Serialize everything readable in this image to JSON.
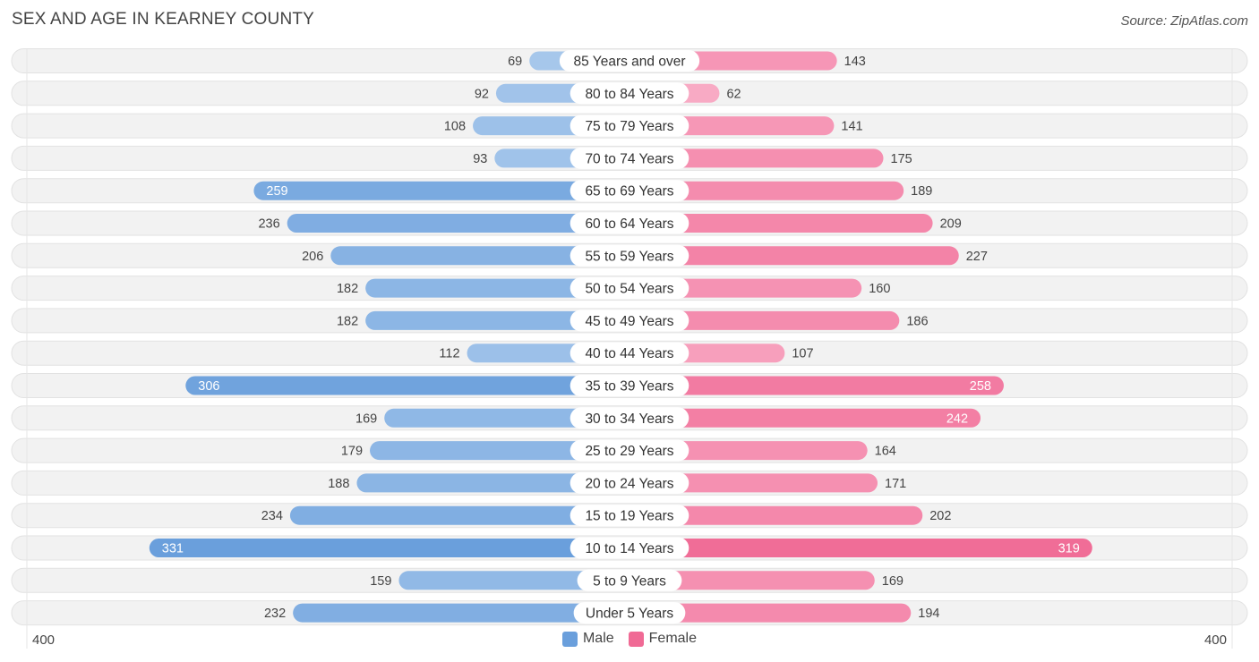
{
  "header": {
    "title": "SEX AND AGE IN KEARNEY COUNTY",
    "source": "Source: ZipAtlas.com"
  },
  "axis": {
    "left_label": "400",
    "right_label": "400"
  },
  "legend": {
    "male_label": "Male",
    "female_label": "Female"
  },
  "colors": {
    "male_light": "#a8c8ec",
    "male_dark": "#6a9fdc",
    "female_light": "#f8aac4",
    "female_dark": "#f06a95",
    "row_bg": "#f2f2f2",
    "row_border": "#e2e2e2"
  },
  "chart_data": {
    "type": "bar",
    "orientation": "horizontal-diverging",
    "max_value": 400,
    "categories": [
      "85 Years and over",
      "80 to 84 Years",
      "75 to 79 Years",
      "70 to 74 Years",
      "65 to 69 Years",
      "60 to 64 Years",
      "55 to 59 Years",
      "50 to 54 Years",
      "45 to 49 Years",
      "40 to 44 Years",
      "35 to 39 Years",
      "30 to 34 Years",
      "25 to 29 Years",
      "20 to 24 Years",
      "15 to 19 Years",
      "10 to 14 Years",
      "5 to 9 Years",
      "Under 5 Years"
    ],
    "series": [
      {
        "name": "Male",
        "values": [
          69,
          92,
          108,
          93,
          259,
          236,
          206,
          182,
          182,
          112,
          306,
          169,
          179,
          188,
          234,
          331,
          159,
          232
        ]
      },
      {
        "name": "Female",
        "values": [
          143,
          62,
          141,
          175,
          189,
          209,
          227,
          160,
          186,
          107,
          258,
          242,
          164,
          171,
          202,
          319,
          169,
          194
        ]
      }
    ],
    "xlim": [
      -400,
      400
    ],
    "legend_position": "bottom-center",
    "grid": false
  }
}
